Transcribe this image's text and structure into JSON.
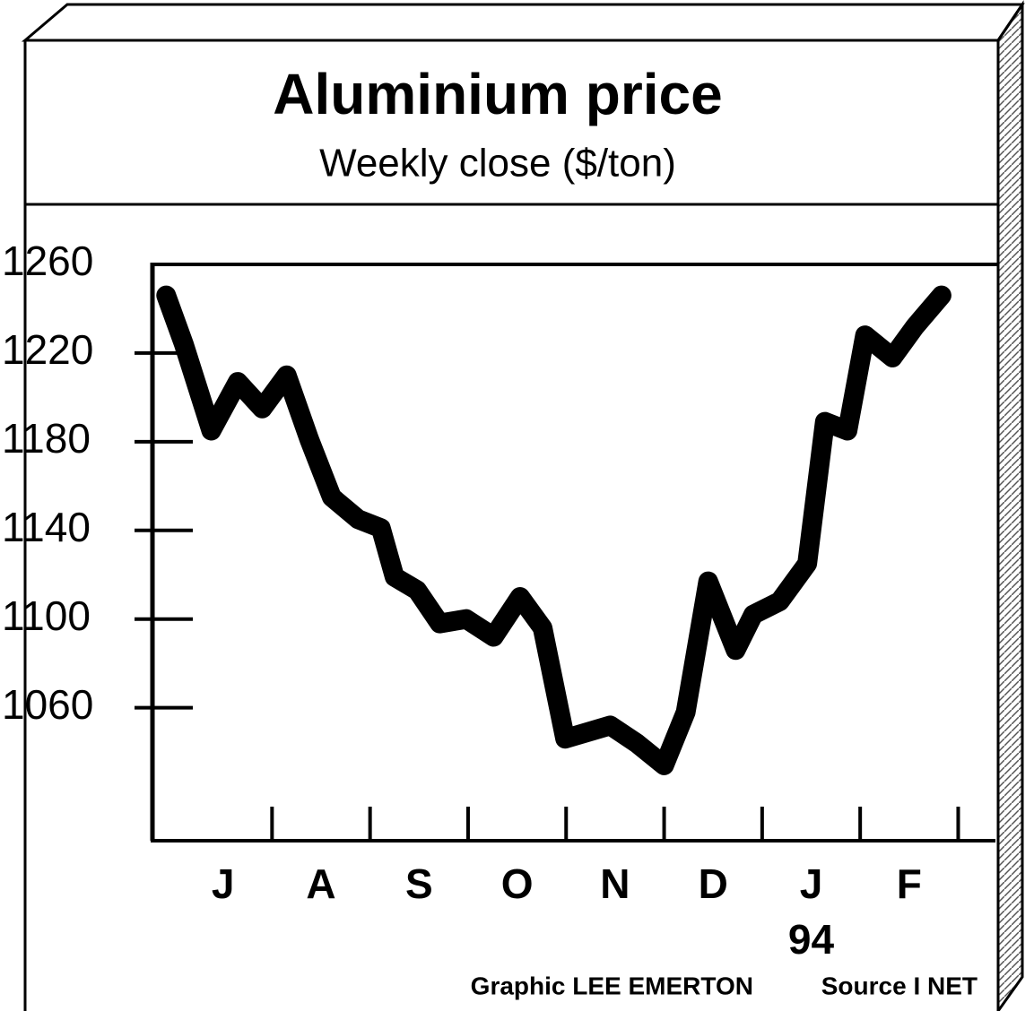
{
  "chart_data": {
    "type": "line",
    "title": "Aluminium price",
    "subtitle": "Weekly close ($/ton)",
    "categories": [
      "J",
      "A",
      "S",
      "O",
      "N",
      "D",
      "J",
      "F"
    ],
    "x_sublabel": "94",
    "credit": "Graphic LEE EMERTON",
    "source": "Source I NET",
    "x": [
      -0.08,
      0.1,
      0.38,
      0.65,
      0.9,
      1.15,
      1.38,
      1.61,
      1.88,
      2.11,
      2.25,
      2.48,
      2.71,
      2.98,
      3.26,
      3.53,
      3.76,
      3.99,
      4.45,
      4.72,
      5.0,
      5.22,
      5.45,
      5.73,
      5.91,
      6.18,
      6.46,
      6.64,
      6.87,
      7.05,
      7.33,
      7.56,
      7.83
    ],
    "values": [
      1246,
      1224,
      1185,
      1207,
      1195,
      1210,
      1181,
      1155,
      1145,
      1141,
      1119,
      1113,
      1098,
      1100,
      1092,
      1110,
      1096,
      1046,
      1052,
      1044,
      1034,
      1058,
      1117,
      1086,
      1102,
      1108,
      1125,
      1189,
      1185,
      1228,
      1218,
      1232,
      1246
    ],
    "color": "#000000",
    "xlim": [
      -0.22,
      8.38
    ],
    "xticks": [
      1,
      2,
      3,
      4,
      5,
      6,
      7,
      8
    ],
    "ylim": [
      1000,
      1260
    ],
    "yticks": [
      1060,
      1100,
      1140,
      1180,
      1220,
      1260
    ]
  }
}
